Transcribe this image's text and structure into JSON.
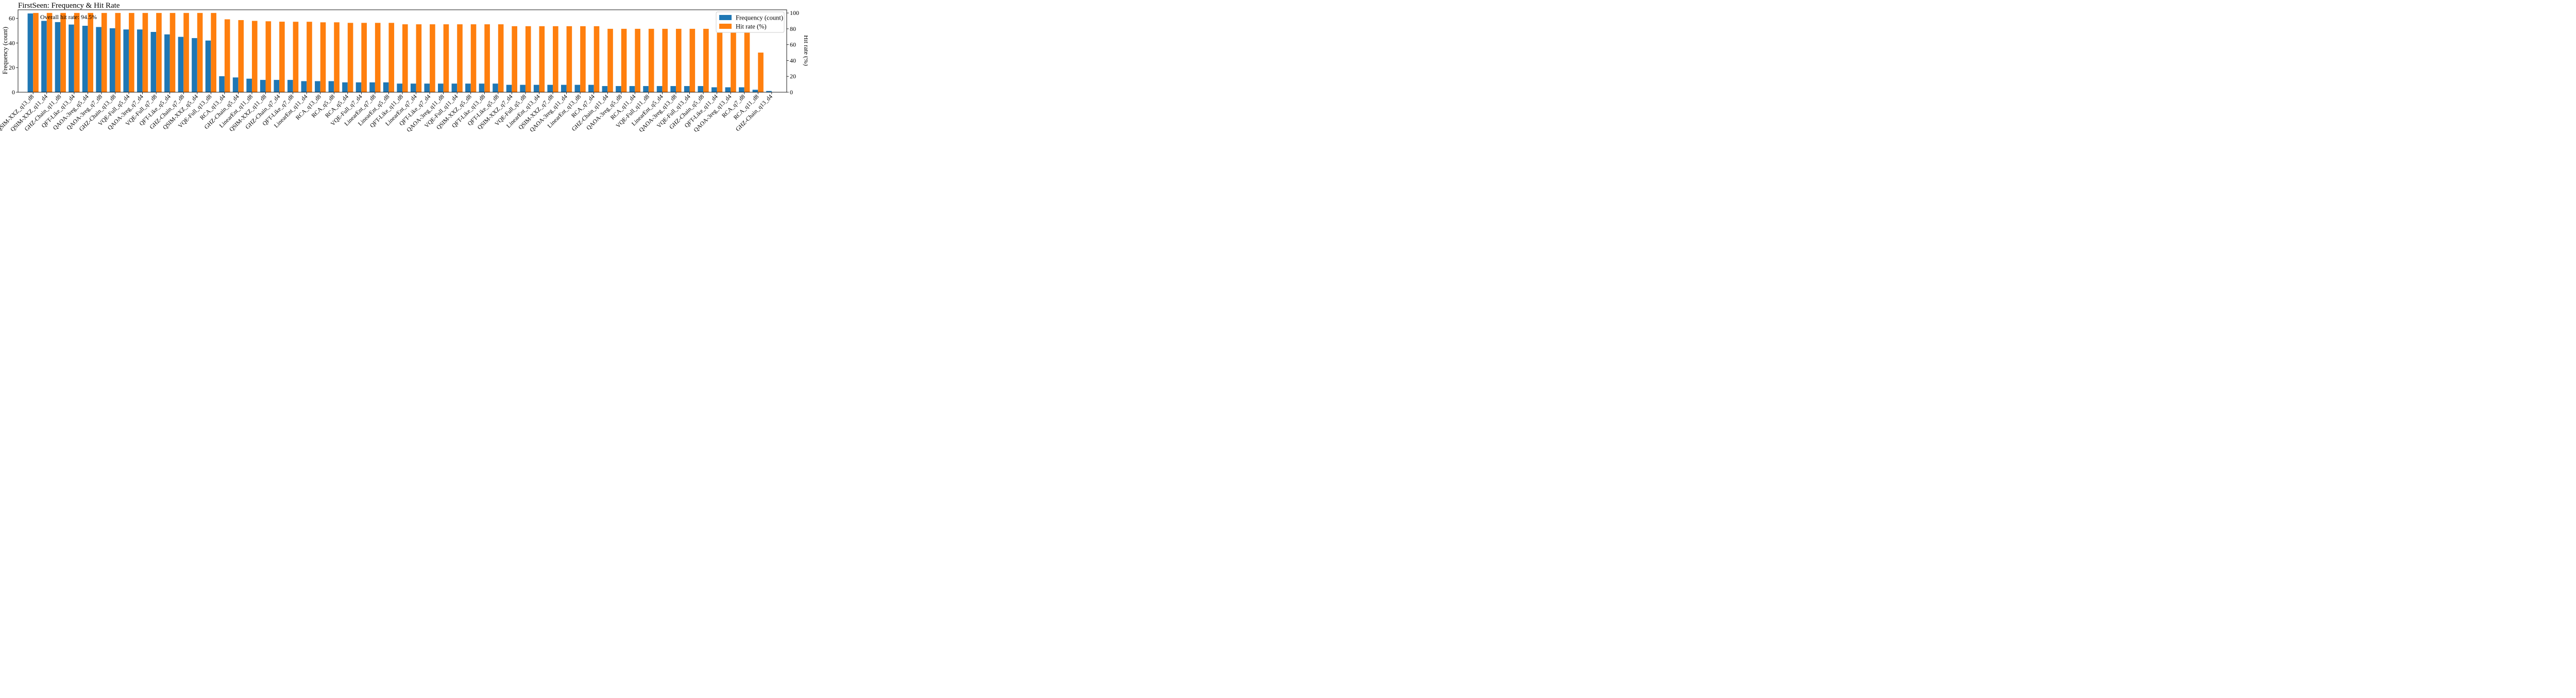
{
  "chart_data": {
    "type": "bar",
    "title": "FirstSeen: Frequency & Hit Rate",
    "xlabel": "",
    "ylabel": "Frequency (count)",
    "y2label": "Hit rate (%)",
    "ylim": [
      0,
      67
    ],
    "y2lim": [
      0,
      104
    ],
    "yticks": [
      0,
      20,
      40,
      60
    ],
    "y2ticks": [
      0,
      20,
      40,
      60,
      80,
      100
    ],
    "grid": false,
    "legend_position": "top-right",
    "annotation": "Overall hit rate: 94.5%",
    "colors": {
      "frequency": "#1f77b4",
      "hit_rate": "#ff7f0e"
    },
    "categories": [
      "QSIM-XXZ_q13_d8",
      "QSIM-XXZ_q11_d4",
      "GHZ-Chain_q11_d8",
      "QFT-Like_q13_d4",
      "QAOA-3reg_q5_d4",
      "QAOA-3reg_q7_d8",
      "GHZ-Chain_q13_d8",
      "VQE-Full_q5_d4",
      "QAOA-3reg_q7_d4",
      "VQE-Full_q7_d8",
      "QFT-Like_q5_d4",
      "GHZ-Chain_q7_d8",
      "QSIM-XXZ_q5_d4",
      "VQE-Full_q13_d8",
      "RCA_q13_d4",
      "GHZ-Chain_q5_d4",
      "LinearEnt_q11_d8",
      "QSIM-XXZ_q11_d8",
      "GHZ-Chain_q7_d4",
      "QFT-Like_q7_d8",
      "LinearEnt_q11_d4",
      "RCA_q13_d8",
      "RCA_q5_d8",
      "RCA_q5_d4",
      "VQE-Full_q7_d4",
      "LinearEnt_q7_d8",
      "LinearEnt_q5_d8",
      "QFT-Like_q11_d8",
      "LinearEnt_q7_d4",
      "QFT-Like_q7_d4",
      "QAOA-3reg_q11_d8",
      "VQE-Full_q11_d4",
      "QSIM-XXZ_q5_d8",
      "QFT-Like_q13_d8",
      "QFT-Like_q5_d8",
      "QSIM-XXZ_q7_d4",
      "VQE-Full_q5_d8",
      "LinearEnt_q13_d4",
      "QSIM-XXZ_q7_d8",
      "QAOA-3reg_q11_d4",
      "LinearEnt_q13_d8",
      "RCA_q7_d4",
      "GHZ-Chain_q11_d4",
      "QAOA-3reg_q5_d8",
      "RCA_q11_d4",
      "VQE-Full_q11_d8",
      "LinearEnt_q5_d4",
      "QAOA-3reg_q13_d8",
      "VQE-Full_q13_d4",
      "GHZ-Chain_q5_d8",
      "QFT-Like_q11_d4",
      "QAOA-3reg_q13_d4",
      "RCA_q7_d8",
      "RCA_q11_d8",
      "GHZ-Chain_q13_d4"
    ],
    "series": [
      {
        "name": "Frequency (count)",
        "axis": "left",
        "values": [
          64,
          58,
          57,
          55,
          54,
          53,
          52,
          51,
          51,
          49,
          47,
          45,
          44,
          42,
          13,
          12,
          11,
          10,
          10,
          10,
          9,
          9,
          9,
          8,
          8,
          8,
          8,
          7,
          7,
          7,
          7,
          7,
          7,
          7,
          7,
          6,
          6,
          6,
          6,
          6,
          6,
          6,
          5,
          5,
          5,
          5,
          5,
          5,
          5,
          5,
          4,
          4,
          4,
          2,
          1
        ]
      },
      {
        "name": "Hit rate (%)",
        "axis": "right",
        "values": [
          100,
          100,
          100,
          100,
          100,
          100,
          100,
          100,
          100,
          100,
          100,
          100,
          100,
          100,
          92,
          91,
          90,
          89.5,
          89,
          88.9,
          88.9,
          88.2,
          88.2,
          87.5,
          87.5,
          87.5,
          87.5,
          85.7,
          85.7,
          85.7,
          85.7,
          85.7,
          85.7,
          85.7,
          85.7,
          83.3,
          83.3,
          83.3,
          83.3,
          83.3,
          83.3,
          83.3,
          80,
          80,
          80,
          80,
          80,
          80,
          80,
          80,
          75,
          75,
          75,
          50,
          0
        ]
      }
    ]
  }
}
